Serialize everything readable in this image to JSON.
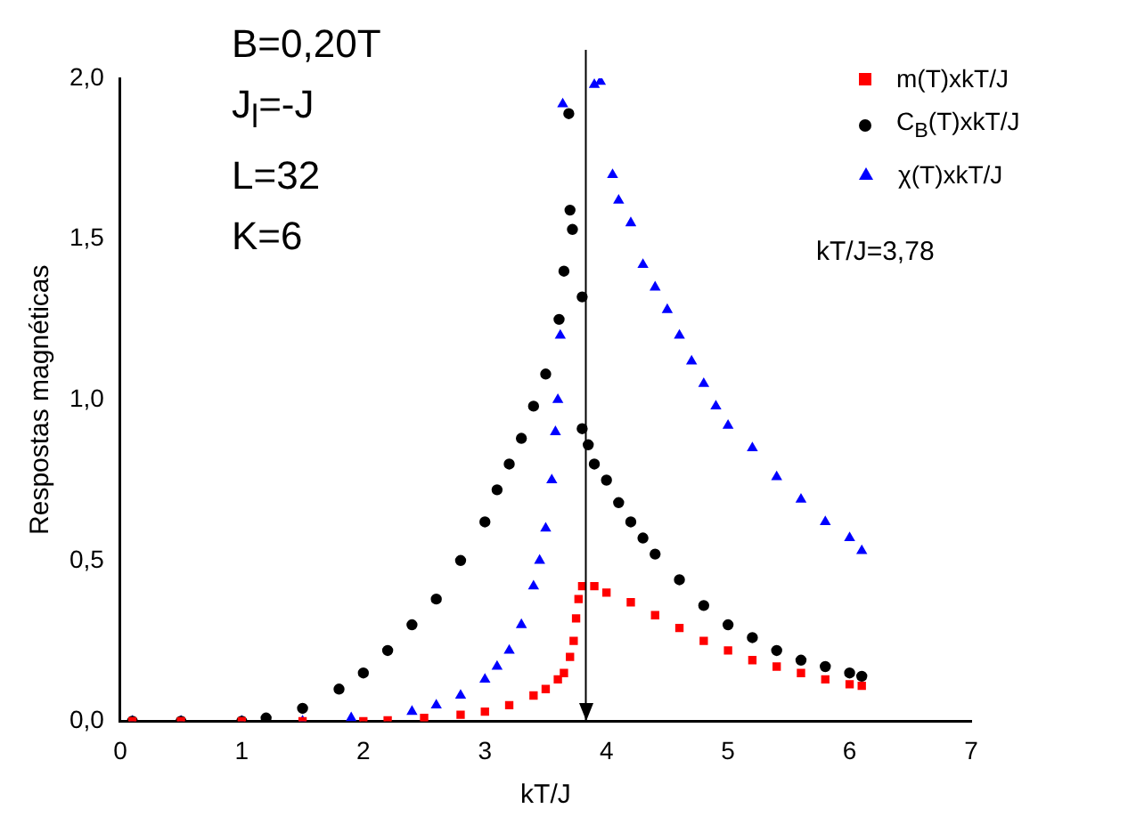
{
  "chart_data": {
    "type": "scatter",
    "xlabel": "kT/J",
    "ylabel": "Respostas magnéticas",
    "xlim": [
      0,
      7
    ],
    "xticks": [
      0,
      1,
      2,
      3,
      4,
      5,
      6,
      7
    ],
    "ylim": [
      0,
      2.0
    ],
    "yticks": [
      {
        "value": 0,
        "label": "0,0"
      },
      {
        "value": 0.5,
        "label": "0,5"
      },
      {
        "value": 1.0,
        "label": "1,0"
      },
      {
        "value": 1.5,
        "label": "1,5"
      },
      {
        "value": 2.0,
        "label": "2,0"
      }
    ],
    "grid": false,
    "legend": "top right",
    "annotations": [
      "B=0,20T",
      "J$_{l}$=-J",
      "L=32",
      "K=6",
      "kT/J=3,78"
    ],
    "ref_lines": [
      {
        "axis": "x",
        "value": 3.83,
        "color": "#000000"
      }
    ],
    "series": [
      {
        "name": "m(T)xkT/J",
        "color": "#ff0000",
        "marker": "square",
        "x": [
          0.1,
          0.5,
          1.0,
          1.5,
          2.0,
          2.2,
          2.5,
          2.8,
          3.0,
          3.2,
          3.4,
          3.5,
          3.6,
          3.65,
          3.7,
          3.73,
          3.75,
          3.77,
          3.8,
          3.9,
          4.0,
          4.2,
          4.4,
          4.6,
          4.8,
          5.0,
          5.2,
          5.4,
          5.6,
          5.8,
          6.0,
          6.1
        ],
        "values": [
          0,
          0,
          0,
          0,
          0,
          0.003,
          0.01,
          0.02,
          0.03,
          0.05,
          0.08,
          0.1,
          0.13,
          0.15,
          0.2,
          0.25,
          0.32,
          0.38,
          0.42,
          0.42,
          0.4,
          0.37,
          0.33,
          0.29,
          0.25,
          0.22,
          0.19,
          0.17,
          0.15,
          0.13,
          0.115,
          0.11
        ]
      },
      {
        "name": "C$_{B}$(T)xkT/J",
        "color": "#000000",
        "marker": "circle",
        "x": [
          0.1,
          0.5,
          1.0,
          1.2,
          1.5,
          1.8,
          2.0,
          2.2,
          2.4,
          2.6,
          2.8,
          3.0,
          3.1,
          3.2,
          3.3,
          3.4,
          3.5,
          3.61,
          3.65,
          3.69,
          3.7,
          3.72,
          3.8,
          3.8,
          3.85,
          3.9,
          4.0,
          4.1,
          4.2,
          4.3,
          4.4,
          4.6,
          4.8,
          5.0,
          5.2,
          5.4,
          5.6,
          5.8,
          6.0,
          6.1
        ],
        "values": [
          0,
          0,
          0,
          0.01,
          0.04,
          0.1,
          0.15,
          0.22,
          0.3,
          0.38,
          0.5,
          0.62,
          0.72,
          0.8,
          0.88,
          0.98,
          1.08,
          1.25,
          1.4,
          1.89,
          1.59,
          1.53,
          1.32,
          0.91,
          0.86,
          0.8,
          0.75,
          0.68,
          0.62,
          0.57,
          0.52,
          0.44,
          0.36,
          0.3,
          0.26,
          0.22,
          0.19,
          0.17,
          0.15,
          0.14
        ]
      },
      {
        "name": "χ(T)xkT/J",
        "color": "#0000ff",
        "marker": "triangle",
        "x": [
          0.1,
          0.5,
          1.0,
          1.5,
          1.9,
          2.4,
          2.6,
          2.8,
          3.0,
          3.1,
          3.2,
          3.3,
          3.4,
          3.45,
          3.5,
          3.55,
          3.58,
          3.6,
          3.62,
          3.64,
          3.9,
          3.95,
          4.05,
          4.1,
          4.2,
          4.3,
          4.4,
          4.5,
          4.6,
          4.7,
          4.8,
          4.9,
          5.0,
          5.2,
          5.4,
          5.6,
          5.8,
          6.0,
          6.1
        ],
        "values": [
          0,
          0,
          0,
          0,
          0.01,
          0.03,
          0.05,
          0.08,
          0.13,
          0.17,
          0.22,
          0.3,
          0.42,
          0.5,
          0.6,
          0.75,
          0.9,
          1.0,
          1.2,
          1.92,
          1.98,
          1.99,
          1.7,
          1.62,
          1.55,
          1.42,
          1.35,
          1.28,
          1.2,
          1.12,
          1.05,
          0.98,
          0.92,
          0.85,
          0.76,
          0.69,
          0.62,
          0.57,
          0.53
        ]
      }
    ]
  }
}
